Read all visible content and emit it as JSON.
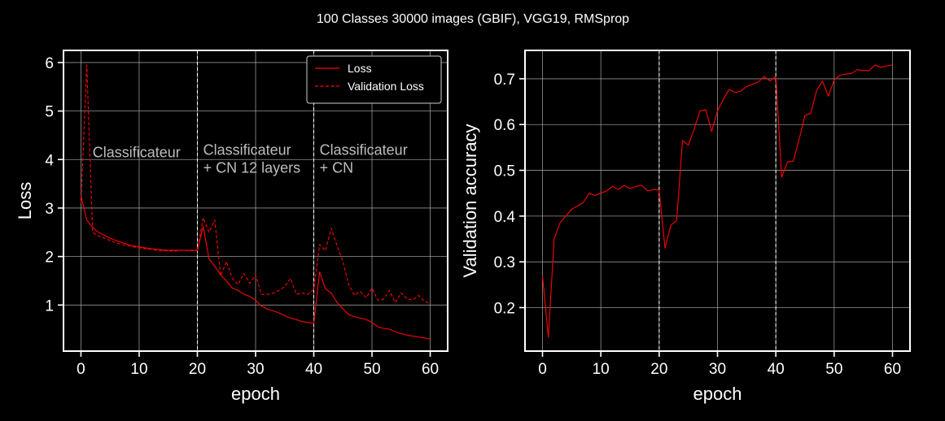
{
  "figure": {
    "suptitle": "100 Classes 30000 images (GBIF), VGG19, RMSprop",
    "colors": {
      "background": "#000000",
      "foreground": "#ffffff",
      "series": "#ff0000",
      "grid": "#b0b0b0",
      "annotation": "#bdbdbd"
    }
  },
  "chart_data": [
    {
      "type": "line",
      "title": "",
      "xlabel": "epoch",
      "ylabel": "Loss",
      "xlim": [
        -3,
        63
      ],
      "ylim": [
        0.05,
        6.25
      ],
      "xticks": [
        0,
        10,
        20,
        30,
        40,
        50,
        60
      ],
      "yticks": [
        1,
        2,
        3,
        4,
        5,
        6
      ],
      "grid": true,
      "legend": "top-right",
      "phase_boundaries": [
        20,
        40
      ],
      "annotations": [
        {
          "lines": [
            "Classificateur"
          ],
          "x": 2,
          "y": 4.05
        },
        {
          "lines": [
            "Classificateur",
            "+ CN 12 layers"
          ],
          "x": 21,
          "y": 4.1
        },
        {
          "lines": [
            "Classificateur",
            "+ CN"
          ],
          "x": 41,
          "y": 4.1
        }
      ],
      "series": [
        {
          "name": "Loss",
          "style": "solid",
          "x": [
            0,
            1,
            2,
            3,
            4,
            5,
            6,
            7,
            8,
            9,
            10,
            11,
            12,
            13,
            14,
            15,
            16,
            17,
            18,
            19,
            20,
            21,
            22,
            23,
            24,
            25,
            26,
            27,
            28,
            29,
            30,
            31,
            32,
            33,
            34,
            35,
            36,
            37,
            38,
            39,
            40,
            41,
            42,
            43,
            44,
            45,
            46,
            47,
            48,
            49,
            50,
            51,
            52,
            53,
            54,
            55,
            56,
            57,
            58,
            59,
            60
          ],
          "values": [
            3.25,
            2.75,
            2.6,
            2.5,
            2.44,
            2.38,
            2.33,
            2.29,
            2.25,
            2.22,
            2.2,
            2.18,
            2.16,
            2.15,
            2.14,
            2.13,
            2.13,
            2.13,
            2.13,
            2.13,
            2.13,
            2.62,
            1.95,
            1.8,
            1.62,
            1.5,
            1.35,
            1.3,
            1.22,
            1.18,
            1.1,
            0.98,
            0.92,
            0.88,
            0.84,
            0.78,
            0.73,
            0.7,
            0.66,
            0.64,
            0.62,
            1.68,
            1.33,
            1.25,
            1.05,
            0.92,
            0.8,
            0.76,
            0.73,
            0.7,
            0.64,
            0.55,
            0.52,
            0.5,
            0.45,
            0.41,
            0.38,
            0.36,
            0.34,
            0.32,
            0.3
          ]
        },
        {
          "name": "Validation Loss",
          "style": "dashed",
          "x": [
            0,
            1,
            2,
            3,
            4,
            5,
            6,
            7,
            8,
            9,
            10,
            11,
            12,
            13,
            14,
            15,
            16,
            17,
            18,
            19,
            20,
            21,
            22,
            23,
            24,
            25,
            26,
            27,
            28,
            29,
            30,
            31,
            32,
            33,
            34,
            35,
            36,
            37,
            38,
            39,
            40,
            41,
            42,
            43,
            44,
            45,
            46,
            47,
            48,
            49,
            50,
            51,
            52,
            53,
            54,
            55,
            56,
            57,
            58,
            59,
            60
          ],
          "values": [
            3.1,
            5.95,
            2.5,
            2.42,
            2.38,
            2.33,
            2.28,
            2.25,
            2.22,
            2.2,
            2.18,
            2.16,
            2.15,
            2.13,
            2.12,
            2.12,
            2.11,
            2.13,
            2.13,
            2.12,
            2.12,
            2.8,
            2.5,
            2.75,
            1.6,
            1.9,
            1.55,
            1.42,
            1.65,
            1.45,
            1.62,
            1.22,
            1.22,
            1.25,
            1.3,
            1.38,
            1.55,
            1.22,
            1.25,
            1.22,
            1.32,
            2.25,
            2.12,
            2.58,
            2.22,
            1.9,
            1.42,
            1.2,
            1.28,
            1.15,
            1.35,
            1.1,
            1.12,
            1.3,
            1.05,
            1.25,
            1.13,
            1.1,
            1.2,
            1.08,
            1.02
          ]
        }
      ]
    },
    {
      "type": "line",
      "title": "",
      "xlabel": "epoch",
      "ylabel": "Validation accuracy",
      "xlim": [
        -3,
        63
      ],
      "ylim": [
        0.105,
        0.762
      ],
      "xticks": [
        0,
        10,
        20,
        30,
        40,
        50,
        60
      ],
      "yticks": [
        0.2,
        0.3,
        0.4,
        0.5,
        0.6,
        0.7
      ],
      "grid": true,
      "phase_boundaries": [
        20,
        40
      ],
      "series": [
        {
          "style": "solid",
          "x": [
            0,
            1,
            2,
            3,
            4,
            5,
            6,
            7,
            8,
            9,
            10,
            11,
            12,
            13,
            14,
            15,
            16,
            17,
            18,
            19,
            20,
            21,
            22,
            23,
            24,
            25,
            26,
            27,
            28,
            29,
            30,
            31,
            32,
            33,
            34,
            35,
            36,
            37,
            38,
            39,
            40,
            41,
            42,
            43,
            44,
            45,
            46,
            47,
            48,
            49,
            50,
            51,
            52,
            53,
            54,
            55,
            56,
            57,
            58,
            59,
            60
          ],
          "values": [
            0.27,
            0.135,
            0.35,
            0.385,
            0.4,
            0.415,
            0.422,
            0.43,
            0.45,
            0.445,
            0.45,
            0.455,
            0.465,
            0.458,
            0.467,
            0.46,
            0.465,
            0.467,
            0.455,
            0.458,
            0.457,
            0.33,
            0.38,
            0.39,
            0.565,
            0.555,
            0.59,
            0.63,
            0.632,
            0.585,
            0.63,
            0.655,
            0.677,
            0.67,
            0.673,
            0.683,
            0.688,
            0.693,
            0.705,
            0.695,
            0.705,
            0.485,
            0.518,
            0.52,
            0.568,
            0.62,
            0.625,
            0.675,
            0.695,
            0.662,
            0.697,
            0.708,
            0.71,
            0.712,
            0.72,
            0.718,
            0.718,
            0.73,
            0.725,
            0.728,
            0.73
          ]
        }
      ]
    }
  ]
}
